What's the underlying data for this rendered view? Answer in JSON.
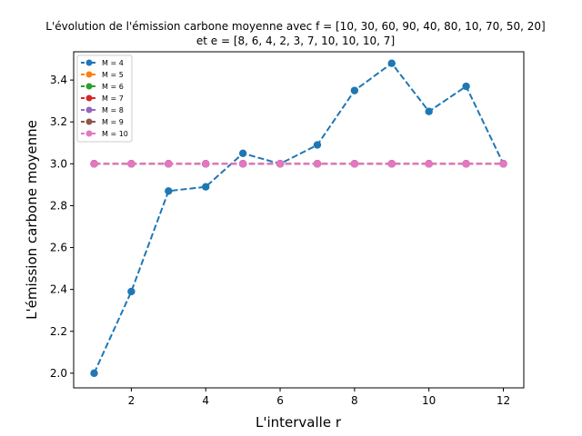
{
  "chart_data": {
    "type": "line",
    "title": "L'évolution de l'émission carbone moyenne avec f = [10, 30, 60, 90, 40, 80, 10, 70, 50, 20]",
    "subtitle": "et e = [8, 6, 4, 2, 3, 7, 10, 10, 10, 7]",
    "xlabel": "L'intervalle r",
    "ylabel": "L'émission carbone moyenne",
    "xlim": [
      0.45,
      12.55
    ],
    "ylim": [
      1.93,
      3.535
    ],
    "xticks": [
      2,
      4,
      6,
      8,
      10,
      12
    ],
    "yticks": [
      2.0,
      2.2,
      2.4,
      2.6,
      2.8,
      3.0,
      3.2,
      3.4
    ],
    "ytick_labels": [
      "2.0",
      "2.2",
      "2.4",
      "2.6",
      "2.8",
      "3.0",
      "3.2",
      "3.4"
    ],
    "grid": false,
    "legend_position": "top-left",
    "x": [
      1,
      2,
      3,
      4,
      5,
      6,
      7,
      8,
      9,
      10,
      11,
      12
    ],
    "series": [
      {
        "name": "M = 4",
        "color": "#1f77b4",
        "values": [
          2.0,
          2.39,
          2.87,
          2.89,
          3.05,
          3.0,
          3.09,
          3.35,
          3.48,
          3.25,
          3.37,
          3.0
        ]
      },
      {
        "name": "M = 5",
        "color": "#ff7f0e",
        "values": [
          3.0,
          3.0,
          3.0,
          3.0,
          3.0,
          3.0,
          3.0,
          3.0,
          3.0,
          3.0,
          3.0,
          3.0
        ]
      },
      {
        "name": "M = 6",
        "color": "#2ca02c",
        "values": [
          3.0,
          3.0,
          3.0,
          3.0,
          3.0,
          3.0,
          3.0,
          3.0,
          3.0,
          3.0,
          3.0,
          3.0
        ]
      },
      {
        "name": "M = 7",
        "color": "#d62728",
        "values": [
          3.0,
          3.0,
          3.0,
          3.0,
          3.0,
          3.0,
          3.0,
          3.0,
          3.0,
          3.0,
          3.0,
          3.0
        ]
      },
      {
        "name": "M = 8",
        "color": "#9467bd",
        "values": [
          3.0,
          3.0,
          3.0,
          3.0,
          3.0,
          3.0,
          3.0,
          3.0,
          3.0,
          3.0,
          3.0,
          3.0
        ]
      },
      {
        "name": "M = 9",
        "color": "#8c564b",
        "values": [
          3.0,
          3.0,
          3.0,
          3.0,
          3.0,
          3.0,
          3.0,
          3.0,
          3.0,
          3.0,
          3.0,
          3.0
        ]
      },
      {
        "name": "M = 10",
        "color": "#e377c2",
        "values": [
          3.0,
          3.0,
          3.0,
          3.0,
          3.0,
          3.0,
          3.0,
          3.0,
          3.0,
          3.0,
          3.0,
          3.0
        ]
      }
    ]
  }
}
